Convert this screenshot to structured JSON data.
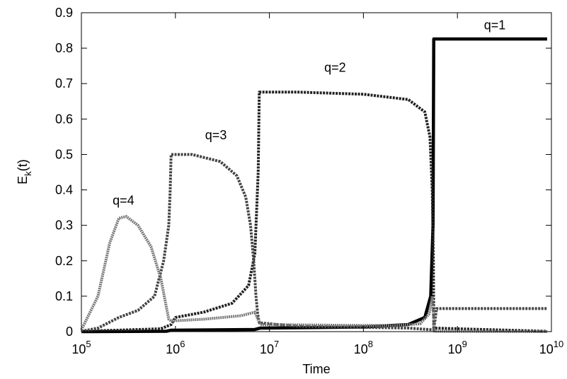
{
  "chart_data": {
    "type": "line",
    "title": "",
    "xlabel": "Time",
    "ylabel": {
      "base": "E",
      "sub": "k",
      "rest": "(t)"
    },
    "x_scale": "log10",
    "xlim": [
      100000,
      10000000000
    ],
    "ylim": [
      0,
      0.9
    ],
    "x_ticks": [
      {
        "base": "10",
        "exp": "5",
        "value": 100000
      },
      {
        "base": "10",
        "exp": "6",
        "value": 1000000
      },
      {
        "base": "10",
        "exp": "7",
        "value": 10000000
      },
      {
        "base": "10",
        "exp": "8",
        "value": 100000000
      },
      {
        "base": "10",
        "exp": "9",
        "value": 1000000000
      },
      {
        "base": "10",
        "exp": "10",
        "value": 10000000000
      }
    ],
    "y_ticks": [
      "0",
      "0.1",
      "0.2",
      "0.3",
      "0.4",
      "0.5",
      "0.6",
      "0.7",
      "0.8",
      "0.9"
    ],
    "grid": false,
    "legend": "none",
    "annotations": [
      {
        "text": "q=1",
        "x": 2500000000,
        "y": 0.865
      },
      {
        "text": "q=2",
        "x": 50000000,
        "y": 0.745
      },
      {
        "text": "q=3",
        "x": 2700000,
        "y": 0.555
      },
      {
        "text": "q=4",
        "x": 280000,
        "y": 0.37
      }
    ],
    "series": [
      {
        "color": "#000000",
        "width": 4.5,
        "dash": "",
        "points": [
          [
            100000,
            0.0
          ],
          [
            800000,
            0.001
          ],
          [
            900000,
            0.004
          ],
          [
            7000000,
            0.006
          ],
          [
            8000000,
            0.01
          ],
          [
            20000000,
            0.011
          ],
          [
            100000000,
            0.013
          ],
          [
            300000000,
            0.02
          ],
          [
            450000000,
            0.04
          ],
          [
            520000000,
            0.1
          ],
          [
            550000000,
            0.3
          ],
          [
            560000000,
            0.826
          ],
          [
            9000000000,
            0.826
          ]
        ]
      },
      {
        "color": "#222222",
        "width": 4,
        "dash": "3 1.5",
        "points": [
          [
            100000,
            0.001
          ],
          [
            700000,
            0.008
          ],
          [
            900000,
            0.02
          ],
          [
            1000000,
            0.04
          ],
          [
            2000000,
            0.055
          ],
          [
            4000000,
            0.08
          ],
          [
            6000000,
            0.13
          ],
          [
            7000000,
            0.22
          ],
          [
            7600000,
            0.45
          ],
          [
            7800000,
            0.676
          ],
          [
            20000000,
            0.676
          ],
          [
            100000000,
            0.67
          ],
          [
            300000000,
            0.655
          ],
          [
            450000000,
            0.62
          ],
          [
            510000000,
            0.55
          ],
          [
            540000000,
            0.4
          ],
          [
            555000000,
            0.2
          ],
          [
            560000000,
            0.01
          ],
          [
            9000000000,
            0.001
          ]
        ]
      },
      {
        "color": "#444444",
        "width": 4,
        "dash": "3 1.5",
        "points": [
          [
            100000,
            0.001
          ],
          [
            150000,
            0.01
          ],
          [
            250000,
            0.04
          ],
          [
            400000,
            0.06
          ],
          [
            600000,
            0.1
          ],
          [
            750000,
            0.2
          ],
          [
            850000,
            0.3
          ],
          [
            880000,
            0.4
          ],
          [
            900000,
            0.5
          ],
          [
            1500000,
            0.5
          ],
          [
            3000000,
            0.48
          ],
          [
            4500000,
            0.44
          ],
          [
            5600000,
            0.38
          ],
          [
            6300000,
            0.3
          ],
          [
            6800000,
            0.2
          ],
          [
            7200000,
            0.1
          ],
          [
            7500000,
            0.05
          ],
          [
            7800000,
            0.025
          ],
          [
            20000000,
            0.015
          ],
          [
            100000000,
            0.012
          ],
          [
            300000000,
            0.01
          ],
          [
            560000000,
            0.005
          ],
          [
            600000000,
            0.065
          ],
          [
            9000000000,
            0.065
          ]
        ]
      },
      {
        "color": "#777777",
        "width": 4,
        "dash": "2 1",
        "points": [
          [
            100000,
            0.005
          ],
          [
            150000,
            0.1
          ],
          [
            200000,
            0.25
          ],
          [
            250000,
            0.32
          ],
          [
            300000,
            0.325
          ],
          [
            400000,
            0.3
          ],
          [
            550000,
            0.24
          ],
          [
            700000,
            0.15
          ],
          [
            800000,
            0.07
          ],
          [
            850000,
            0.035
          ],
          [
            900000,
            0.03
          ],
          [
            2000000,
            0.035
          ],
          [
            5000000,
            0.045
          ],
          [
            7000000,
            0.055
          ],
          [
            7400000,
            0.04
          ],
          [
            8000000,
            0.02
          ],
          [
            50000000,
            0.018
          ],
          [
            200000000,
            0.017
          ],
          [
            400000000,
            0.022
          ],
          [
            500000000,
            0.05
          ],
          [
            540000000,
            0.1
          ],
          [
            555000000,
            0.05
          ],
          [
            570000000,
            0.001
          ],
          [
            9000000000,
            0.0
          ]
        ]
      }
    ]
  }
}
